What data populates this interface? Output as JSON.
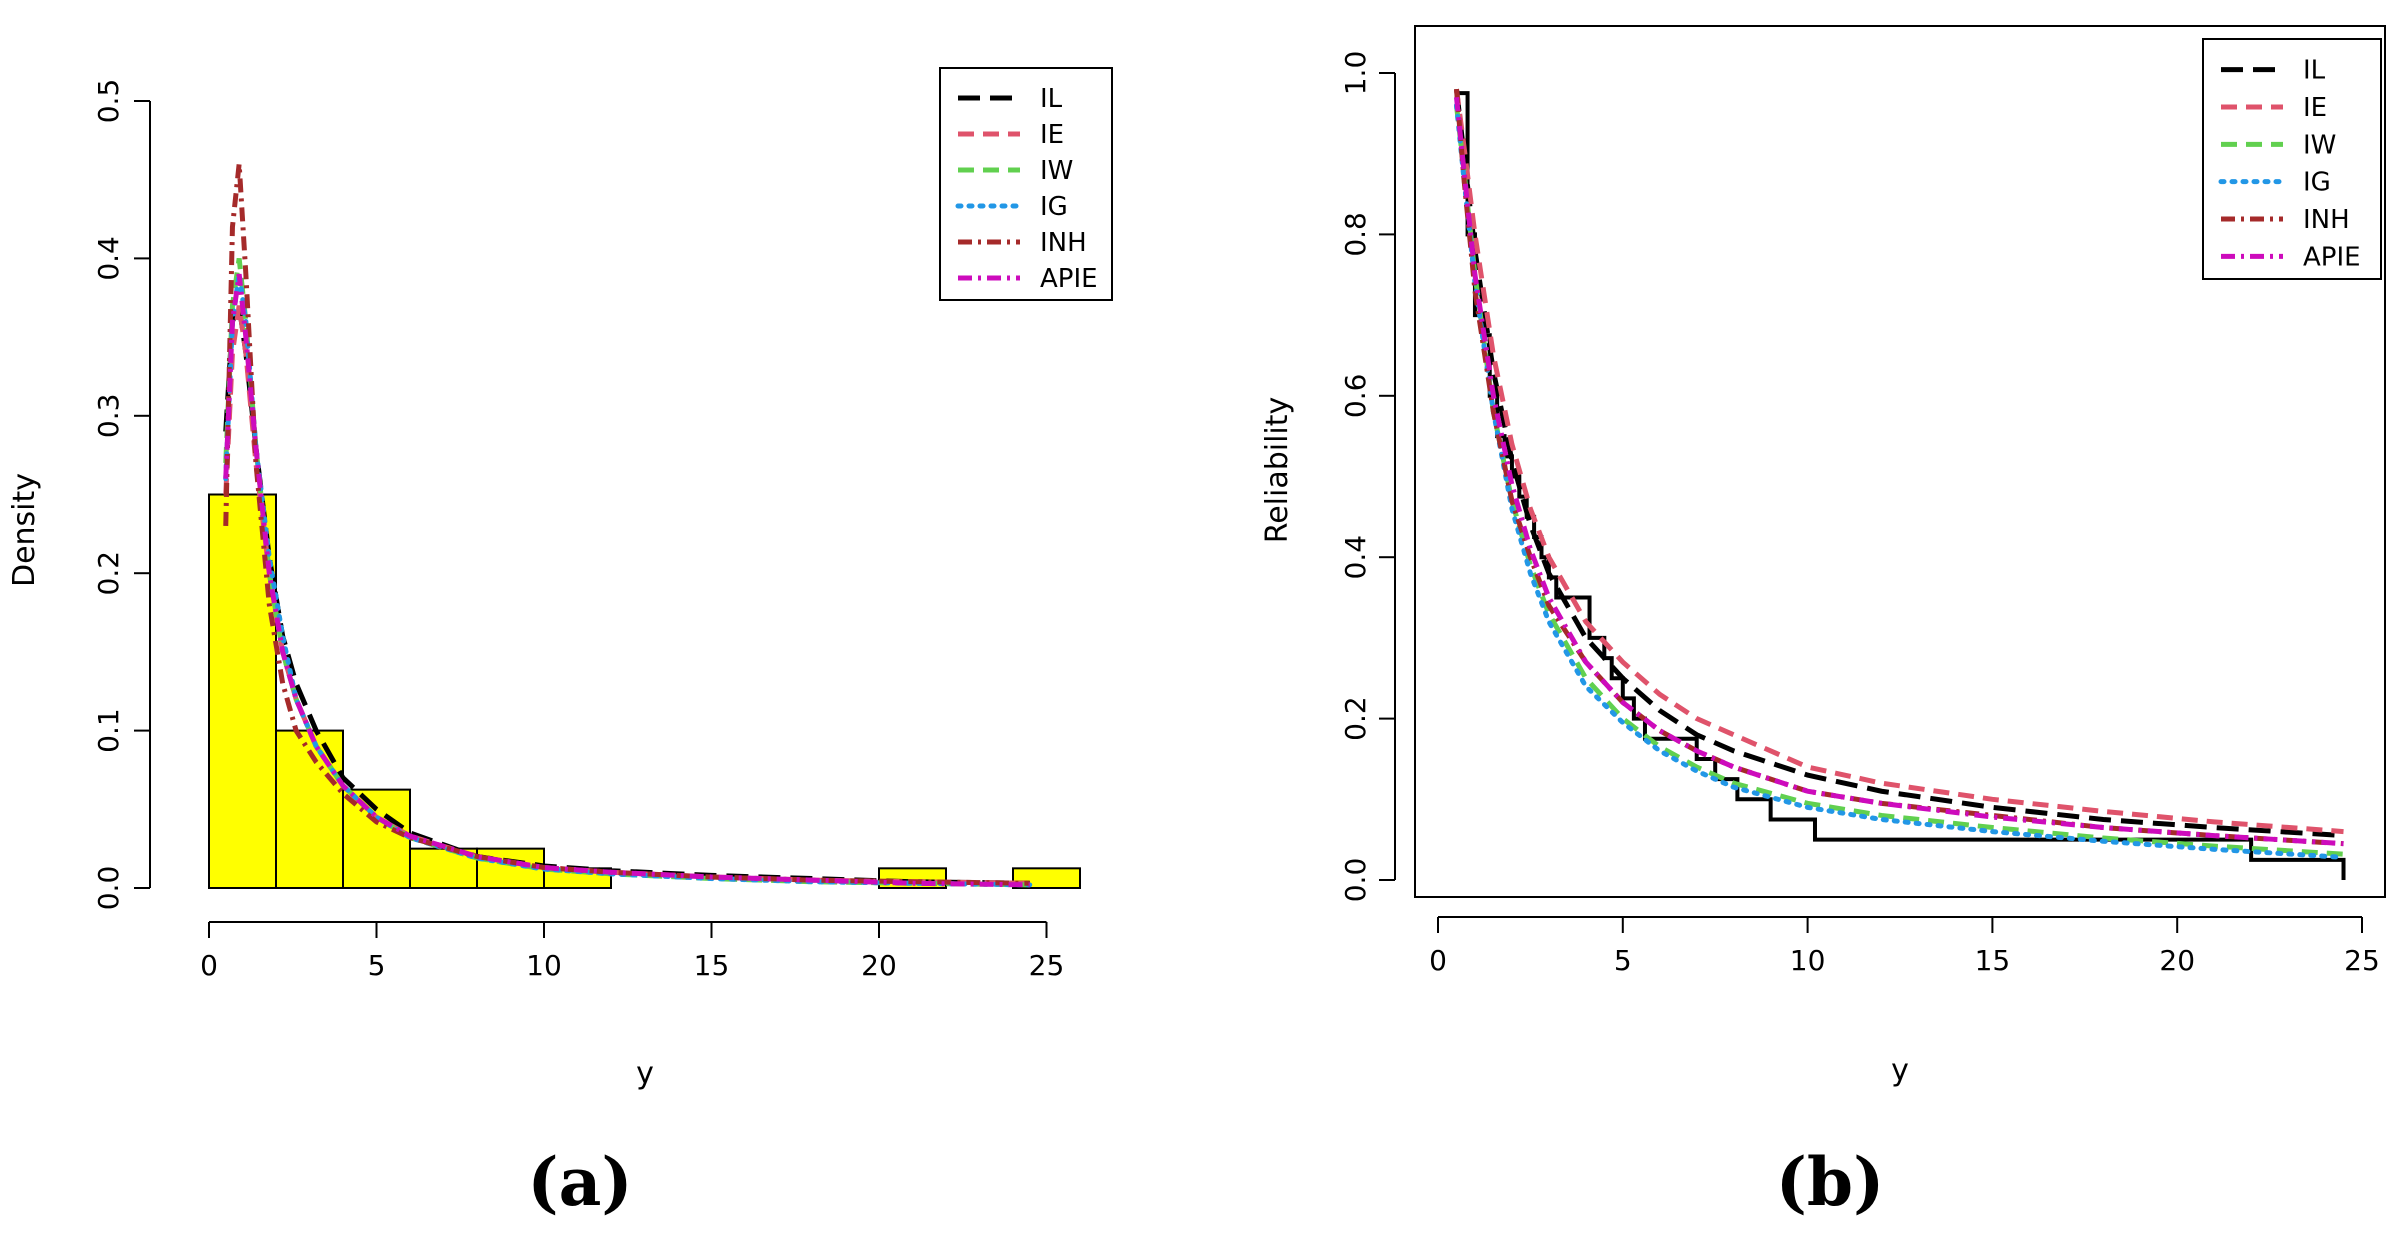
{
  "chart_data": [
    {
      "id": "a",
      "type": "histogram_with_density_curves",
      "panel_label": "(a)",
      "title": "",
      "xlabel": "y",
      "ylabel": "Density",
      "xlim": [
        0,
        26
      ],
      "ylim": [
        0,
        0.5
      ],
      "xticks": [
        0,
        5,
        10,
        15,
        20,
        25
      ],
      "yticks": [
        0.0,
        0.1,
        0.2,
        0.3,
        0.4,
        0.5
      ],
      "xtick_labels": [
        "0",
        "5",
        "10",
        "15",
        "20",
        "25"
      ],
      "ytick_labels": [
        "0.0",
        "0.1",
        "0.2",
        "0.3",
        "0.4",
        "0.5"
      ],
      "grid": false,
      "legend_position": "top-right",
      "histogram": {
        "color": "#FFFF00",
        "bin_edges": [
          0,
          2,
          4,
          6,
          8,
          10,
          12,
          14,
          16,
          18,
          20,
          22,
          24,
          26
        ],
        "densities": [
          0.25,
          0.1,
          0.0625,
          0.025,
          0.025,
          0.0125,
          0,
          0,
          0,
          0,
          0.0125,
          0,
          0.0125
        ]
      },
      "series": [
        {
          "name": "IL",
          "color": "#000000",
          "dash": "long",
          "x": [
            0.5,
            0.7,
            0.9,
            1.1,
            1.4,
            1.8,
            2.2,
            2.6,
            3.2,
            4,
            5,
            6,
            8,
            10,
            12,
            15,
            18,
            21,
            24.5
          ],
          "y": [
            0.29,
            0.36,
            0.37,
            0.34,
            0.28,
            0.21,
            0.16,
            0.13,
            0.1,
            0.07,
            0.05,
            0.035,
            0.02,
            0.014,
            0.011,
            0.008,
            0.006,
            0.004,
            0.003
          ]
        },
        {
          "name": "IE",
          "color": "#DF536B",
          "dash": "medium",
          "x": [
            0.5,
            0.7,
            0.9,
            1.1,
            1.4,
            1.8,
            2.2,
            2.6,
            3.2,
            4,
            5,
            6,
            8,
            10,
            12,
            15,
            18,
            21,
            24.5
          ],
          "y": [
            0.25,
            0.34,
            0.37,
            0.34,
            0.27,
            0.2,
            0.15,
            0.12,
            0.09,
            0.065,
            0.045,
            0.033,
            0.02,
            0.013,
            0.01,
            0.007,
            0.005,
            0.004,
            0.003
          ]
        },
        {
          "name": "IW",
          "color": "#61D04F",
          "dash": "medium",
          "x": [
            0.5,
            0.7,
            0.9,
            1.1,
            1.4,
            1.8,
            2.2,
            2.6,
            3.2,
            4,
            5,
            6,
            8,
            10,
            12,
            15,
            18,
            21,
            24.5
          ],
          "y": [
            0.27,
            0.37,
            0.4,
            0.36,
            0.28,
            0.2,
            0.15,
            0.12,
            0.09,
            0.065,
            0.045,
            0.032,
            0.019,
            0.012,
            0.009,
            0.006,
            0.004,
            0.003,
            0.002
          ]
        },
        {
          "name": "IG",
          "color": "#2297E6",
          "dash": "dotted",
          "x": [
            0.5,
            0.7,
            0.9,
            1.1,
            1.4,
            1.8,
            2.2,
            2.6,
            3.2,
            4,
            5,
            6,
            8,
            10,
            12,
            15,
            18,
            21,
            24.5
          ],
          "y": [
            0.26,
            0.36,
            0.39,
            0.36,
            0.28,
            0.21,
            0.16,
            0.12,
            0.09,
            0.065,
            0.045,
            0.032,
            0.019,
            0.012,
            0.009,
            0.006,
            0.004,
            0.003,
            0.002
          ]
        },
        {
          "name": "INH",
          "color": "#A52A2A",
          "dash": "dashdot",
          "x": [
            0.5,
            0.7,
            0.9,
            1.1,
            1.4,
            1.8,
            2.2,
            2.6,
            3.2,
            4,
            5,
            6,
            8,
            10,
            12,
            15,
            18,
            21,
            24.5
          ],
          "y": [
            0.23,
            0.42,
            0.46,
            0.39,
            0.27,
            0.18,
            0.13,
            0.1,
            0.08,
            0.06,
            0.042,
            0.032,
            0.02,
            0.013,
            0.01,
            0.007,
            0.005,
            0.004,
            0.003
          ]
        },
        {
          "name": "APIE",
          "color": "#CD0BBC",
          "dash": "dashdot",
          "x": [
            0.5,
            0.7,
            0.9,
            1.1,
            1.4,
            1.8,
            2.2,
            2.6,
            3.2,
            4,
            5,
            6,
            8,
            10,
            12,
            15,
            18,
            21,
            24.5
          ],
          "y": [
            0.26,
            0.36,
            0.39,
            0.35,
            0.28,
            0.2,
            0.15,
            0.12,
            0.09,
            0.065,
            0.045,
            0.033,
            0.02,
            0.013,
            0.01,
            0.007,
            0.005,
            0.003,
            0.002
          ]
        }
      ]
    },
    {
      "id": "b",
      "type": "line",
      "panel_label": "(b)",
      "title": "",
      "xlabel": "y",
      "ylabel": "Reliability",
      "xlim": [
        0,
        25
      ],
      "ylim": [
        0,
        1
      ],
      "xticks": [
        0,
        5,
        10,
        15,
        20,
        25
      ],
      "yticks": [
        0.0,
        0.2,
        0.4,
        0.6,
        0.8,
        1.0
      ],
      "xtick_labels": [
        "0",
        "5",
        "10",
        "15",
        "20",
        "25"
      ],
      "ytick_labels": [
        "0.0",
        "0.2",
        "0.4",
        "0.6",
        "0.8",
        "1.0"
      ],
      "grid": false,
      "legend_position": "top-right",
      "empirical_step": {
        "color": "#000000",
        "x": [
          0.5,
          0.8,
          1.0,
          1.2,
          1.4,
          1.6,
          1.8,
          2.0,
          2.2,
          2.4,
          2.6,
          2.8,
          3.0,
          3.2,
          3.5,
          4.1,
          4.5,
          4.7,
          5.0,
          5.3,
          5.6,
          7.0,
          7.5,
          8.1,
          9.0,
          10.2,
          22.0,
          24.5
        ],
        "y": [
          0.975,
          0.8,
          0.7,
          0.675,
          0.6,
          0.55,
          0.525,
          0.5,
          0.475,
          0.45,
          0.425,
          0.4,
          0.375,
          0.35,
          0.35,
          0.3,
          0.275,
          0.25,
          0.225,
          0.2,
          0.175,
          0.15,
          0.125,
          0.1,
          0.075,
          0.05,
          0.025,
          0.0
        ]
      },
      "series": [
        {
          "name": "IL",
          "color": "#000000",
          "dash": "long",
          "x": [
            0.5,
            0.7,
            1,
            1.5,
            2,
            2.5,
            3,
            4,
            5,
            6,
            7,
            8,
            10,
            12,
            15,
            18,
            21,
            24.5
          ],
          "y": [
            0.98,
            0.9,
            0.78,
            0.63,
            0.52,
            0.44,
            0.38,
            0.3,
            0.25,
            0.21,
            0.18,
            0.16,
            0.13,
            0.11,
            0.09,
            0.075,
            0.065,
            0.055
          ]
        },
        {
          "name": "IE",
          "color": "#DF536B",
          "dash": "medium",
          "x": [
            0.5,
            0.7,
            1,
            1.5,
            2,
            2.5,
            3,
            4,
            5,
            6,
            7,
            8,
            10,
            12,
            15,
            18,
            21,
            24.5
          ],
          "y": [
            0.98,
            0.91,
            0.8,
            0.65,
            0.54,
            0.46,
            0.4,
            0.32,
            0.27,
            0.23,
            0.2,
            0.18,
            0.14,
            0.12,
            0.1,
            0.085,
            0.072,
            0.06
          ]
        },
        {
          "name": "IW",
          "color": "#61D04F",
          "dash": "medium",
          "x": [
            0.5,
            0.7,
            1,
            1.5,
            2,
            2.5,
            3,
            4,
            5,
            6,
            7,
            8,
            10,
            12,
            15,
            18,
            21,
            24.5
          ],
          "y": [
            0.96,
            0.88,
            0.75,
            0.58,
            0.47,
            0.39,
            0.33,
            0.25,
            0.2,
            0.165,
            0.14,
            0.12,
            0.095,
            0.08,
            0.065,
            0.052,
            0.042,
            0.032
          ]
        },
        {
          "name": "IG",
          "color": "#2297E6",
          "dash": "dotted",
          "x": [
            0.5,
            0.7,
            1,
            1.5,
            2,
            2.5,
            3,
            4,
            5,
            6,
            7,
            8,
            10,
            12,
            15,
            18,
            21,
            24.5
          ],
          "y": [
            0.96,
            0.87,
            0.74,
            0.58,
            0.46,
            0.38,
            0.32,
            0.24,
            0.195,
            0.16,
            0.135,
            0.115,
            0.09,
            0.075,
            0.06,
            0.048,
            0.038,
            0.028
          ]
        },
        {
          "name": "INH",
          "color": "#A52A2A",
          "dash": "dashdot",
          "x": [
            0.5,
            0.7,
            1,
            1.5,
            2,
            2.5,
            3,
            4,
            5,
            6,
            7,
            8,
            10,
            12,
            15,
            18,
            21,
            24.5
          ],
          "y": [
            0.98,
            0.87,
            0.73,
            0.58,
            0.47,
            0.4,
            0.34,
            0.27,
            0.22,
            0.185,
            0.16,
            0.14,
            0.11,
            0.095,
            0.08,
            0.065,
            0.055,
            0.045
          ]
        },
        {
          "name": "APIE",
          "color": "#CD0BBC",
          "dash": "dashdot",
          "x": [
            0.5,
            0.7,
            1,
            1.5,
            2,
            2.5,
            3,
            4,
            5,
            6,
            7,
            8,
            10,
            12,
            15,
            18,
            21,
            24.5
          ],
          "y": [
            0.97,
            0.88,
            0.75,
            0.6,
            0.49,
            0.41,
            0.35,
            0.27,
            0.22,
            0.185,
            0.16,
            0.14,
            0.11,
            0.095,
            0.078,
            0.065,
            0.055,
            0.045
          ]
        }
      ]
    }
  ]
}
